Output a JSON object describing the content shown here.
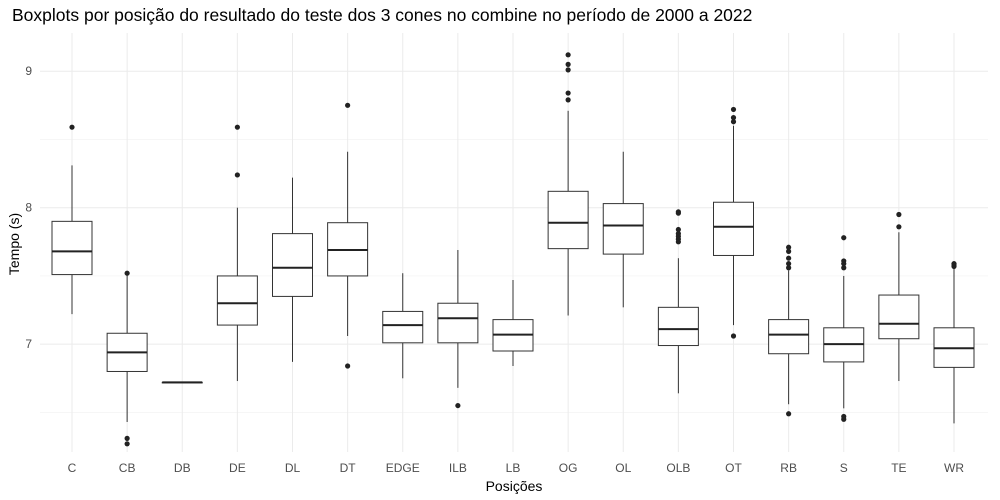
{
  "chart_data": {
    "type": "boxplot",
    "title": "Boxplots por posição do resultado do teste dos 3 cones no combine no período de 2000 a 2022",
    "xlabel": "Posições",
    "ylabel": "Tempo (s)",
    "ylim": [
      6.21,
      9.28
    ],
    "y_ticks": [
      7,
      8,
      9
    ],
    "grid": true,
    "categories": [
      "C",
      "CB",
      "DB",
      "DE",
      "DL",
      "DT",
      "EDGE",
      "ILB",
      "LB",
      "OG",
      "OL",
      "OLB",
      "OT",
      "RB",
      "S",
      "TE",
      "WR"
    ],
    "boxes": [
      {
        "q1": 7.51,
        "median": 7.68,
        "q3": 7.9,
        "wlo": 7.22,
        "whi": 8.31,
        "outliers": [
          8.59
        ]
      },
      {
        "q1": 6.8,
        "median": 6.94,
        "q3": 7.08,
        "wlo": 6.43,
        "whi": 7.51,
        "outliers": [
          7.52,
          6.31,
          6.27
        ]
      },
      {
        "q1": 6.72,
        "median": 6.72,
        "q3": 6.72,
        "wlo": 6.72,
        "whi": 6.72,
        "outliers": []
      },
      {
        "q1": 7.14,
        "median": 7.3,
        "q3": 7.5,
        "wlo": 6.73,
        "whi": 8.0,
        "outliers": [
          8.59,
          8.24
        ]
      },
      {
        "q1": 7.35,
        "median": 7.56,
        "q3": 7.81,
        "wlo": 6.87,
        "whi": 8.22,
        "outliers": []
      },
      {
        "q1": 7.5,
        "median": 7.69,
        "q3": 7.89,
        "wlo": 7.06,
        "whi": 8.41,
        "outliers": [
          8.75,
          6.84
        ]
      },
      {
        "q1": 7.01,
        "median": 7.14,
        "q3": 7.24,
        "wlo": 6.75,
        "whi": 7.52,
        "outliers": []
      },
      {
        "q1": 7.01,
        "median": 7.19,
        "q3": 7.3,
        "wlo": 6.68,
        "whi": 7.69,
        "outliers": [
          6.55
        ]
      },
      {
        "q1": 6.95,
        "median": 7.07,
        "q3": 7.18,
        "wlo": 6.84,
        "whi": 7.47,
        "outliers": []
      },
      {
        "q1": 7.7,
        "median": 7.89,
        "q3": 8.12,
        "wlo": 7.21,
        "whi": 8.71,
        "outliers": [
          9.12,
          9.05,
          9.01,
          8.84,
          8.79
        ]
      },
      {
        "q1": 7.66,
        "median": 7.87,
        "q3": 8.03,
        "wlo": 7.27,
        "whi": 8.41,
        "outliers": []
      },
      {
        "q1": 6.99,
        "median": 7.11,
        "q3": 7.27,
        "wlo": 6.64,
        "whi": 7.63,
        "outliers": [
          7.97,
          7.96,
          7.84,
          7.81,
          7.79,
          7.77,
          7.75
        ]
      },
      {
        "q1": 7.65,
        "median": 7.86,
        "q3": 8.04,
        "wlo": 7.14,
        "whi": 8.6,
        "outliers": [
          8.72,
          8.66,
          8.63,
          7.06
        ]
      },
      {
        "q1": 6.93,
        "median": 7.07,
        "q3": 7.18,
        "wlo": 6.56,
        "whi": 7.54,
        "outliers": [
          7.71,
          7.68,
          7.63,
          7.59,
          7.56,
          6.49
        ]
      },
      {
        "q1": 6.87,
        "median": 7.0,
        "q3": 7.12,
        "wlo": 6.53,
        "whi": 7.5,
        "outliers": [
          7.78,
          7.61,
          7.59,
          7.56,
          6.47,
          6.45
        ]
      },
      {
        "q1": 7.04,
        "median": 7.15,
        "q3": 7.36,
        "wlo": 6.73,
        "whi": 7.82,
        "outliers": [
          7.95,
          7.86
        ]
      },
      {
        "q1": 6.83,
        "median": 6.97,
        "q3": 7.12,
        "wlo": 6.42,
        "whi": 7.56,
        "outliers": [
          7.59,
          7.58,
          7.57
        ]
      }
    ]
  }
}
